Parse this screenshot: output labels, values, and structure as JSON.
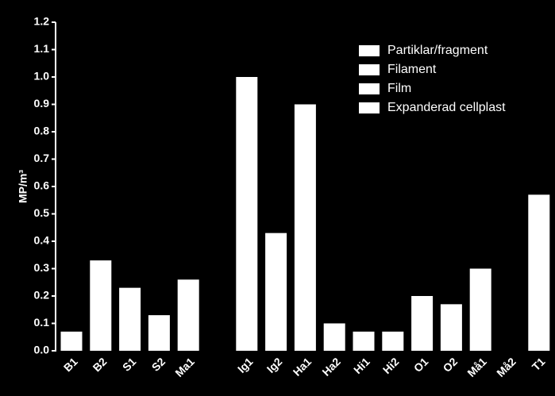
{
  "chart_data": {
    "type": "bar",
    "ylabel": "MP/m³",
    "categories": [
      "B1",
      "B2",
      "S1",
      "S2",
      "Ma1",
      null,
      "Ig1",
      "Ig2",
      "Ha1",
      "Ha2",
      "Hi1",
      "Hi2",
      "O1",
      "O2",
      "Må1",
      "Må2",
      "T1"
    ],
    "values": [
      0.07,
      0.33,
      0.23,
      0.13,
      0.26,
      null,
      1.0,
      0.43,
      0.9,
      0.1,
      0.07,
      0.07,
      0.2,
      0.17,
      0.3,
      0,
      0.57
    ],
    "color": "#ffffff",
    "legend": [
      {
        "name": "Partiklar/fragment",
        "color": "#ffffff"
      },
      {
        "name": "Filament",
        "color": "#ffffff"
      },
      {
        "name": "Film",
        "color": "#ffffff"
      },
      {
        "name": "Expanderad cellplast",
        "color": "#ffffff"
      }
    ],
    "ylim": [
      0,
      1.2
    ],
    "yticks": [
      {
        "value": 0,
        "label": "0.0"
      },
      0.1,
      0.2,
      0.3,
      0.4,
      0.5,
      0.6,
      0.7,
      0.8,
      0.9,
      {
        "value": 1,
        "label": "1.0"
      },
      1.1,
      1.2
    ],
    "grid": false
  }
}
